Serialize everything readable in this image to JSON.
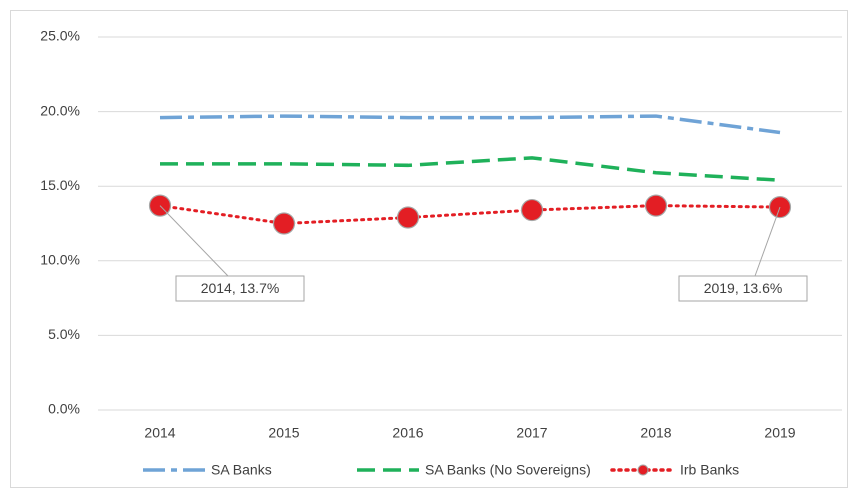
{
  "chart_data": {
    "type": "line",
    "categories": [
      "2014",
      "2015",
      "2016",
      "2017",
      "2018",
      "2019"
    ],
    "series": [
      {
        "name": "SA Banks",
        "color": "#6fa3d6",
        "style": "dashdot",
        "values": [
          19.6,
          19.7,
          19.6,
          19.6,
          19.7,
          18.6
        ]
      },
      {
        "name": "SA Banks (No Sovereigns)",
        "color": "#1fb15a",
        "style": "dashed",
        "values": [
          16.5,
          16.5,
          16.4,
          16.9,
          15.9,
          15.4
        ]
      },
      {
        "name": "Irb Banks",
        "color": "#e31e24",
        "style": "dotted",
        "markers": true,
        "values": [
          13.7,
          12.5,
          12.9,
          13.4,
          13.7,
          13.6
        ],
        "value_labels": [
          "2014, 13.7%",
          null,
          null,
          null,
          null,
          "2019, 13.6%"
        ]
      }
    ],
    "ylim": [
      0,
      25
    ],
    "yticks": [
      {
        "value": 0,
        "label": "0.0%"
      },
      {
        "value": 5,
        "label": "5.0%"
      },
      {
        "value": 10,
        "label": "10.0%"
      },
      {
        "value": 15,
        "label": "15.0%"
      },
      {
        "value": 20,
        "label": "20.0%"
      },
      {
        "value": 25,
        "label": "25.0%"
      }
    ],
    "grid": true,
    "legend": "bottom"
  }
}
